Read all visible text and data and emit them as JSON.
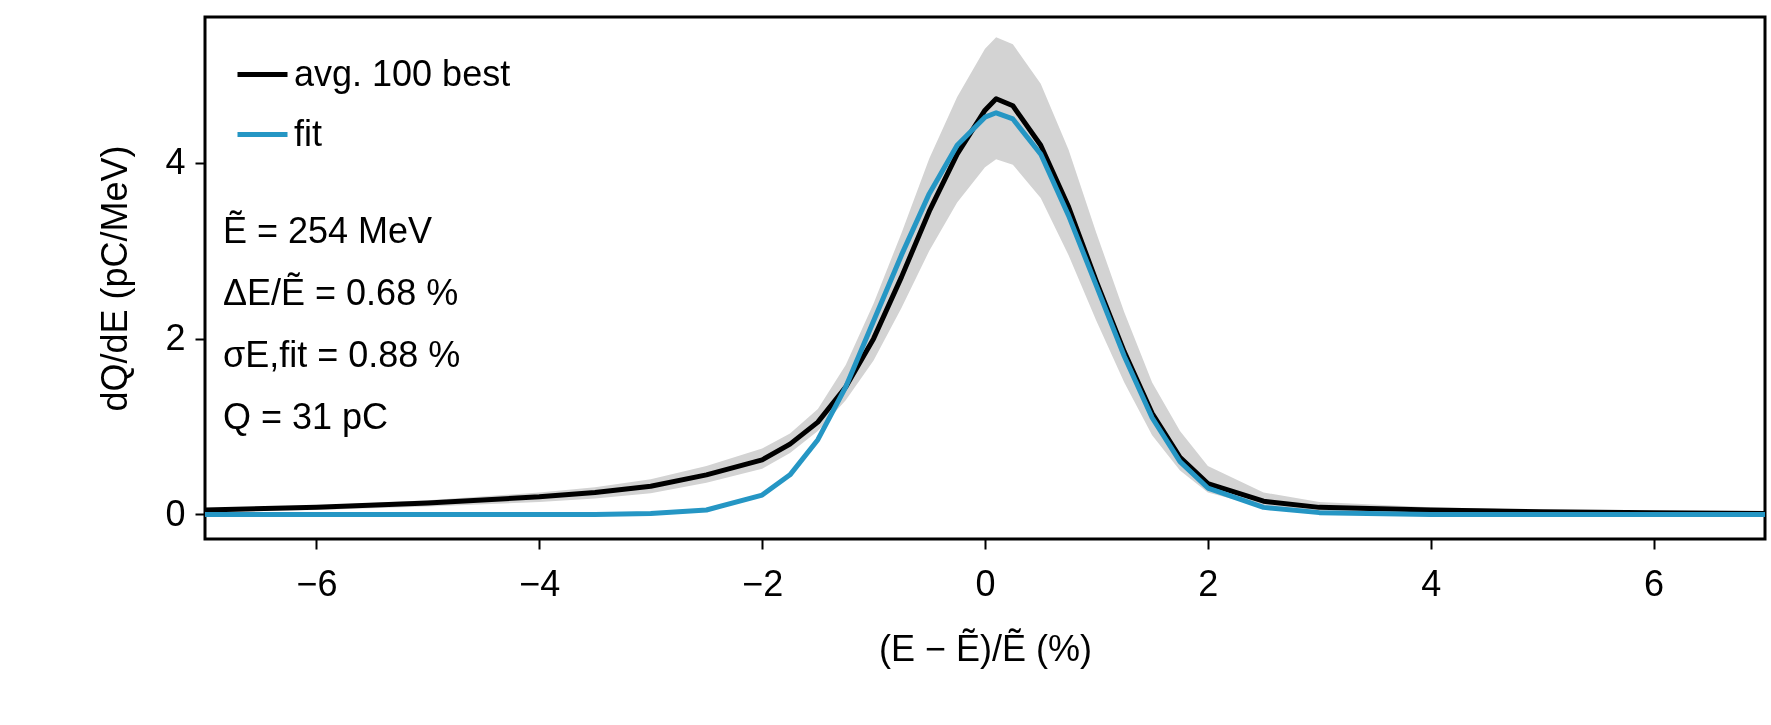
{
  "chart_data": {
    "type": "line",
    "xlabel": "(E − Ẽ)/Ẽ (%)",
    "ylabel": "dQ/dE (pC/MeV)",
    "xlim": [
      -7,
      7
    ],
    "ylim": [
      -0.28,
      5.66
    ],
    "xticks": [
      -6,
      -4,
      -2,
      0,
      2,
      4,
      6
    ],
    "yticks": [
      0,
      2,
      4
    ],
    "grid": false,
    "legend": "top left",
    "line_style": "solid",
    "marker": "none",
    "annotations": [
      "Ẽ = 254 MeV",
      "ΔE/Ẽ = 0.68 %",
      "σE,fit = 0.88 %",
      "Q = 31 pC"
    ],
    "series": [
      {
        "name": "avg. 100 best",
        "color": "#000000",
        "x": [
          -7,
          -6,
          -5,
          -4,
          -3.5,
          -3,
          -2.5,
          -2,
          -1.75,
          -1.5,
          -1.25,
          -1,
          -0.75,
          -0.5,
          -0.25,
          0,
          0.1,
          0.25,
          0.5,
          0.75,
          1,
          1.25,
          1.5,
          1.75,
          2,
          2.5,
          3,
          4,
          5,
          6,
          7
        ],
        "values": [
          0.05,
          0.08,
          0.13,
          0.2,
          0.25,
          0.32,
          0.45,
          0.62,
          0.8,
          1.05,
          1.45,
          2.0,
          2.7,
          3.45,
          4.1,
          4.6,
          4.73,
          4.65,
          4.2,
          3.5,
          2.65,
          1.85,
          1.15,
          0.65,
          0.35,
          0.15,
          0.08,
          0.05,
          0.03,
          0.02,
          0.01
        ],
        "lower": [
          0.03,
          0.05,
          0.09,
          0.14,
          0.18,
          0.24,
          0.36,
          0.52,
          0.7,
          0.95,
          1.3,
          1.75,
          2.35,
          3.0,
          3.55,
          3.95,
          4.04,
          3.98,
          3.6,
          2.95,
          2.2,
          1.5,
          0.9,
          0.5,
          0.25,
          0.08,
          0.03,
          0.02,
          0.01,
          0.01,
          0.0
        ],
        "upper": [
          0.07,
          0.1,
          0.16,
          0.25,
          0.31,
          0.4,
          0.55,
          0.75,
          0.92,
          1.2,
          1.7,
          2.4,
          3.2,
          4.05,
          4.75,
          5.3,
          5.43,
          5.35,
          4.9,
          4.15,
          3.2,
          2.3,
          1.5,
          0.95,
          0.55,
          0.25,
          0.14,
          0.08,
          0.05,
          0.03,
          0.02
        ]
      },
      {
        "name": "fit",
        "color": "#2596c4",
        "x": [
          -7,
          -5,
          -3.5,
          -3,
          -2.5,
          -2,
          -1.75,
          -1.5,
          -1.25,
          -1,
          -0.75,
          -0.5,
          -0.25,
          0,
          0.1,
          0.25,
          0.5,
          0.75,
          1,
          1.25,
          1.5,
          1.75,
          2,
          2.5,
          3,
          4,
          5,
          7
        ],
        "values": [
          0,
          0,
          0,
          0.01,
          0.05,
          0.22,
          0.45,
          0.85,
          1.45,
          2.2,
          2.95,
          3.65,
          4.2,
          4.52,
          4.57,
          4.5,
          4.1,
          3.4,
          2.6,
          1.8,
          1.1,
          0.6,
          0.3,
          0.08,
          0.02,
          0,
          0,
          0
        ]
      }
    ]
  }
}
